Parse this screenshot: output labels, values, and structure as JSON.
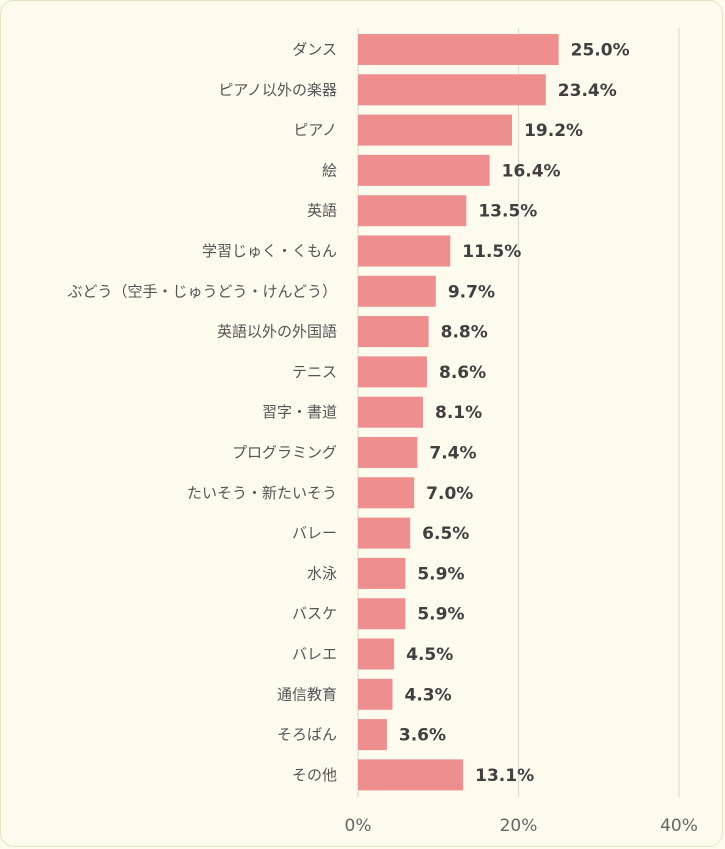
{
  "chart_data": {
    "type": "bar",
    "orientation": "horizontal",
    "categories": [
      "ダンス",
      "ピアノ以外の楽器",
      "ピアノ",
      "絵",
      "英語",
      "学習じゅく・くもん",
      "ぶどう（空手・じゅうどう・けんどう）",
      "英語以外の外国語",
      "テニス",
      "習字・書道",
      "プログラミング",
      "たいそう・新たいそう",
      "バレー",
      "水泳",
      "バスケ",
      "バレエ",
      "通信教育",
      "そろばん",
      "その他"
    ],
    "values": [
      25.0,
      23.4,
      19.2,
      16.4,
      13.5,
      11.5,
      9.7,
      8.8,
      8.6,
      8.1,
      7.4,
      7.0,
      6.5,
      5.9,
      5.9,
      4.5,
      4.3,
      3.6,
      13.1
    ],
    "value_labels": [
      "25.0%",
      "23.4%",
      "19.2%",
      "16.4%",
      "13.5%",
      "11.5%",
      "9.7%",
      "8.8%",
      "8.6%",
      "8.1%",
      "7.4%",
      "7.0%",
      "6.5%",
      "5.9%",
      "5.9%",
      "4.5%",
      "4.3%",
      "3.6%",
      "13.1%"
    ],
    "x_ticks": [
      "0%",
      "20%",
      "40%"
    ],
    "xlim": [
      0,
      40
    ],
    "grid": "vertical",
    "bar_color": "#ee8e8e",
    "grid_color": "#dcdcd2",
    "title": "",
    "xlabel": "",
    "ylabel": ""
  }
}
